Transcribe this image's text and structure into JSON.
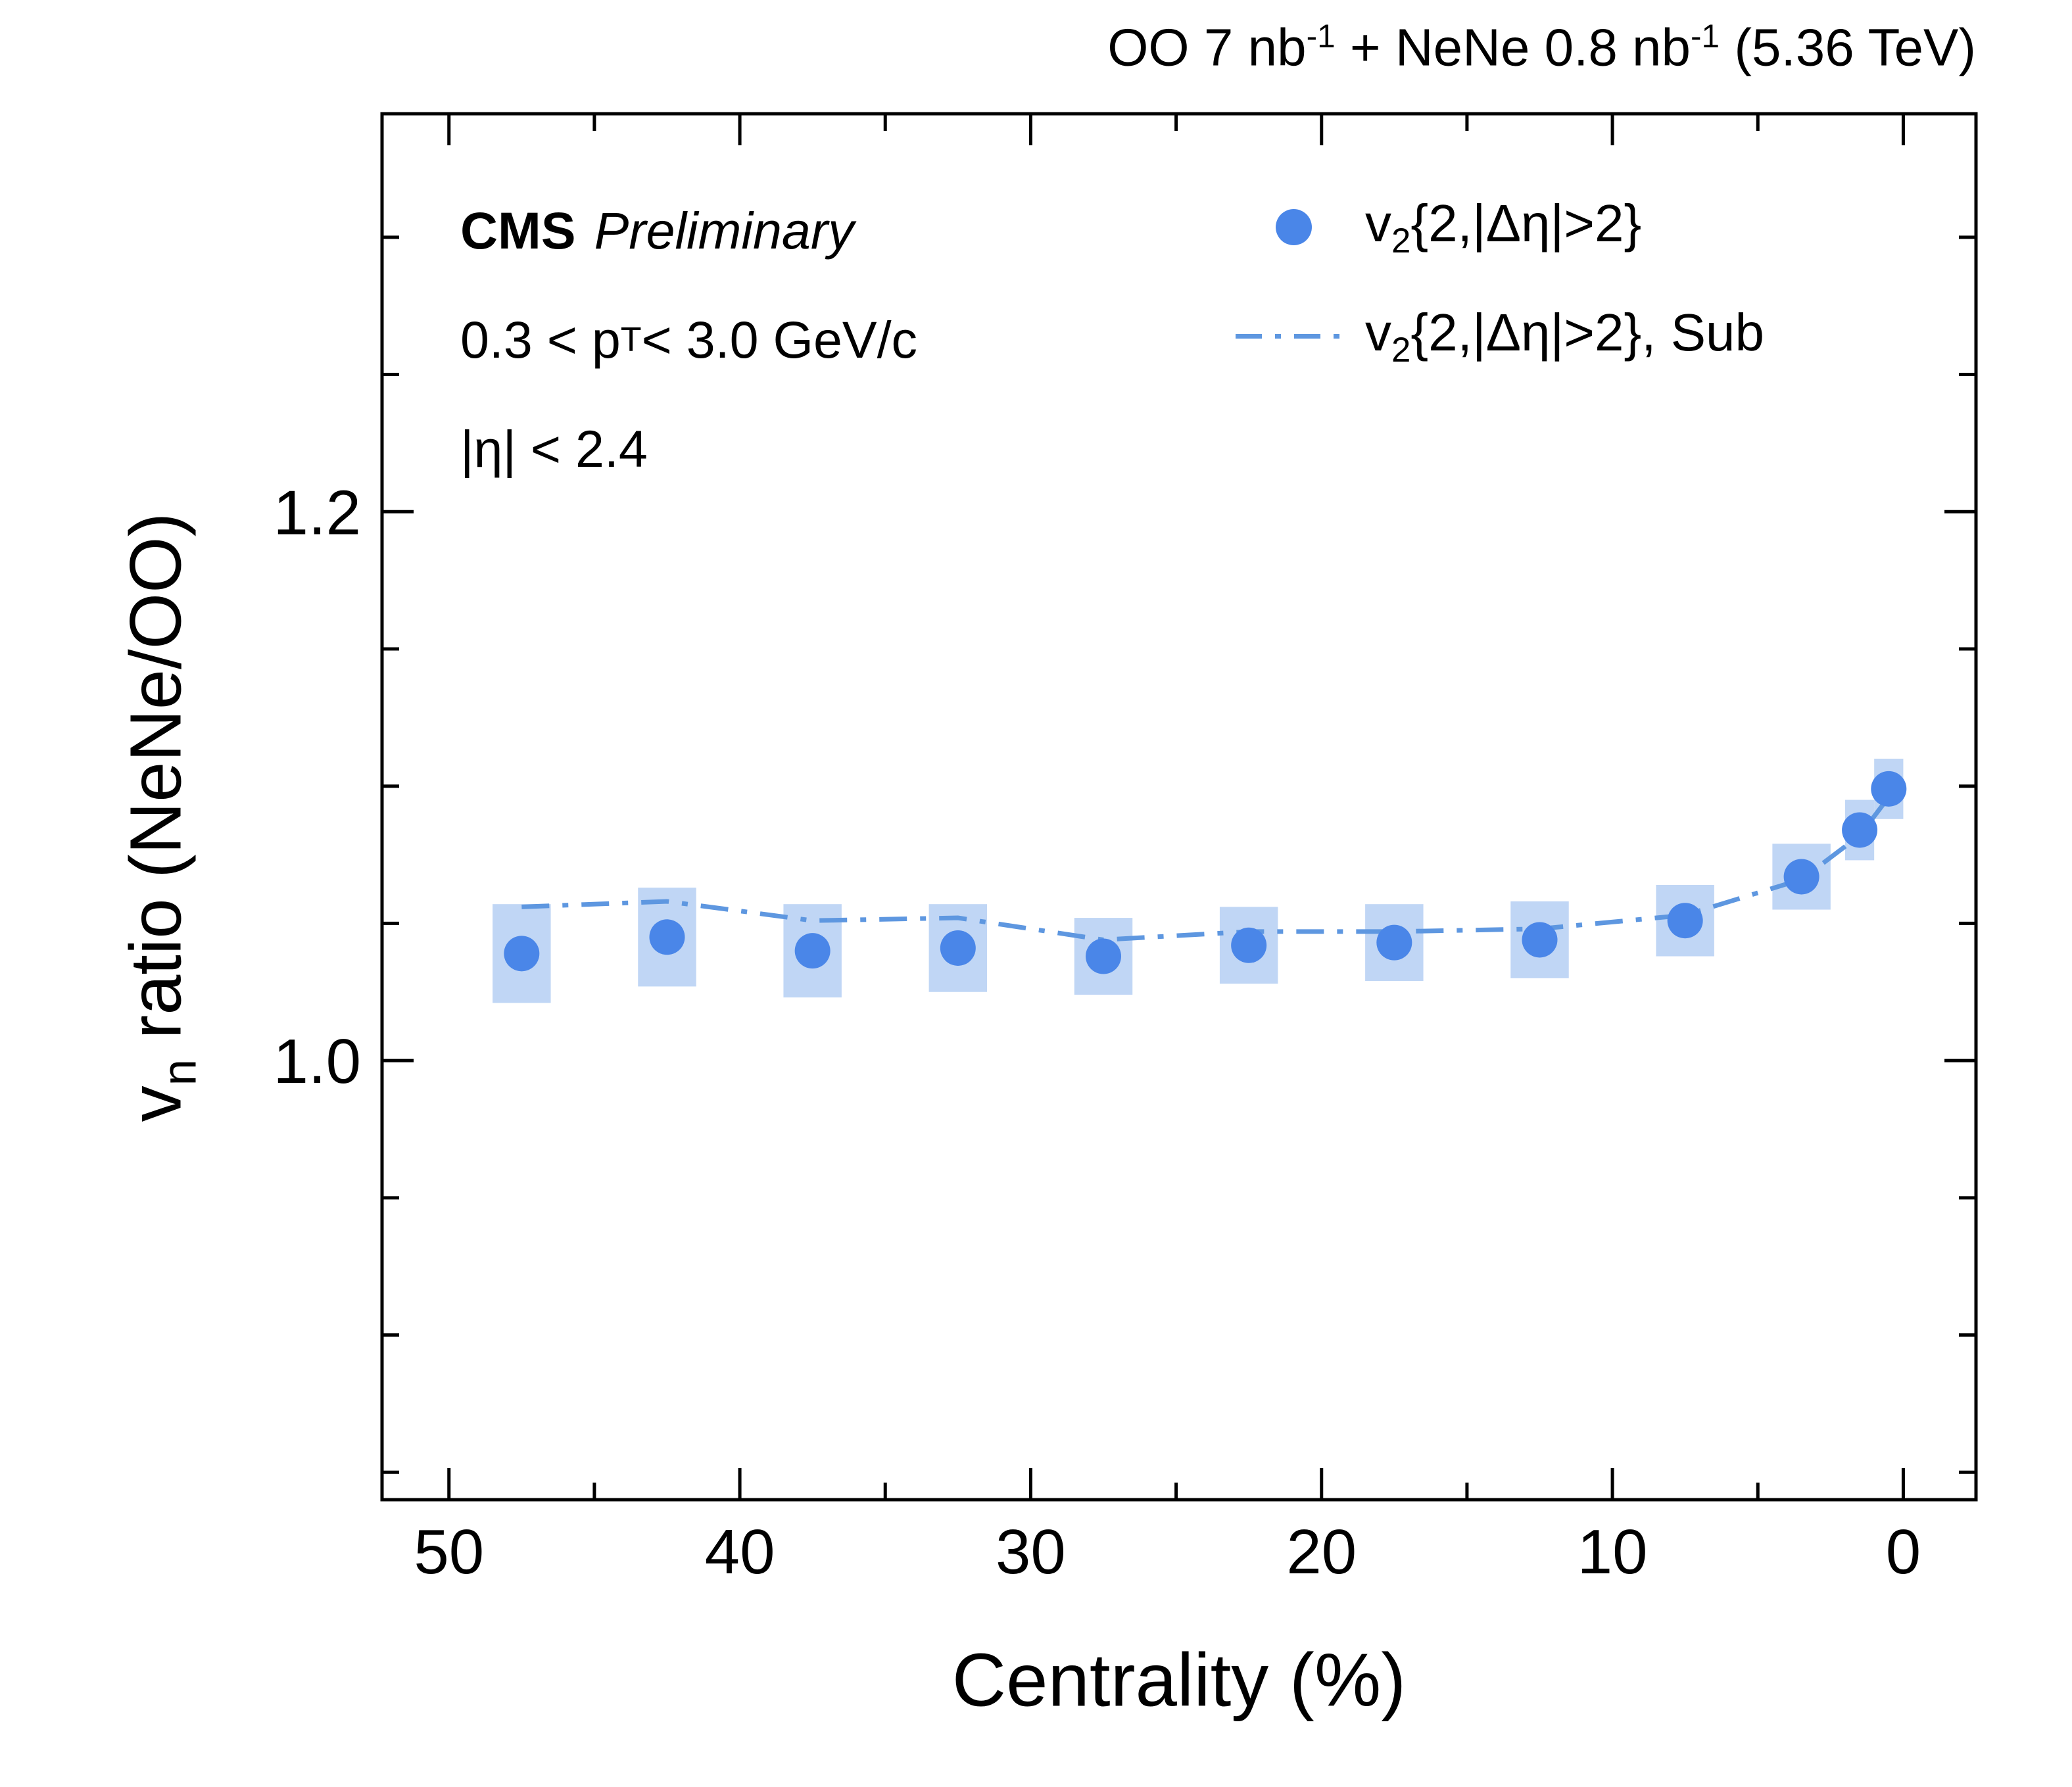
{
  "header": {
    "seg1": "OO 7 nb",
    "sup1": "-1",
    "seg2": " + NeNe 0.8 nb",
    "sup2": "-1",
    "seg3": " (5.36 TeV)"
  },
  "annotations": {
    "experiment": "CMS",
    "status": "Preliminary",
    "pt_seg1": "0.3 < p",
    "pt_sub": "T",
    "pt_seg2": " < 3.0 GeV/c",
    "eta": "|η| < 2.4"
  },
  "legend": {
    "entries": [
      {
        "seg1": "v",
        "sub": "2",
        "seg2": "{2,|Δη|>2}"
      },
      {
        "seg1": "v",
        "sub": "2",
        "seg2": "{2,|Δη|>2}, Sub"
      }
    ]
  },
  "axes": {
    "x_label": "Centrality (%)",
    "y_label_seg1": "v",
    "y_label_sub": "n",
    "y_label_seg2": " ratio (NeNe/OO)"
  },
  "chart_data": {
    "type": "scatter",
    "title": "OO 7 nb^-1 + NeNe 0.8 nb^-1 (5.36 TeV)",
    "xlabel": "Centrality (%)",
    "ylabel": "v_n ratio (NeNe/OO)",
    "x_axis_reversed": true,
    "xlim": [
      52.3,
      -2.5
    ],
    "ylim": [
      0.84,
      1.345
    ],
    "grid": false,
    "legend_position": "top-right-inside",
    "colors": {
      "marker": "#4a86e8",
      "box": "#b9d2f4",
      "line": "#5e97e0"
    },
    "x_ticks": {
      "values": [
        50,
        40,
        30,
        20,
        10,
        0
      ],
      "labels": [
        "50",
        "40",
        "30",
        "20",
        "10",
        "0"
      ],
      "minor": [
        45,
        35,
        25,
        15,
        5
      ]
    },
    "y_ticks": {
      "values": [
        1.0,
        1.2
      ],
      "labels": [
        "1.0",
        "1.2"
      ],
      "minor": [
        0.85,
        0.9,
        0.95,
        1.05,
        1.1,
        1.15,
        1.25,
        1.3
      ]
    },
    "series": [
      {
        "name": "v2{2,|Δη|>2}",
        "style": "markers-with-syst-boxes",
        "x": [
          47.5,
          42.5,
          37.5,
          32.5,
          27.5,
          22.5,
          17.5,
          12.5,
          7.5,
          3.5,
          1.5,
          0.5
        ],
        "y": [
          1.039,
          1.045,
          1.04,
          1.041,
          1.038,
          1.042,
          1.043,
          1.044,
          1.051,
          1.067,
          1.084,
          1.099
        ],
        "syst": [
          0.018,
          0.018,
          0.017,
          0.016,
          0.014,
          0.014,
          0.014,
          0.014,
          0.013,
          0.012,
          0.011,
          0.011
        ],
        "box_halfwidth": [
          1.0,
          1.0,
          1.0,
          1.0,
          1.0,
          1.0,
          1.0,
          1.0,
          1.0,
          1.0,
          0.5,
          0.5
        ]
      },
      {
        "name": "v2{2,|Δη|>2}, Sub",
        "style": "dashdot-line",
        "x": [
          47.5,
          42.5,
          37.5,
          32.5,
          27.5,
          22.5,
          17.5,
          12.5,
          7.5,
          3.5,
          1.5,
          0.5
        ],
        "y": [
          1.056,
          1.058,
          1.051,
          1.052,
          1.044,
          1.047,
          1.047,
          1.048,
          1.053,
          1.066,
          1.082,
          1.096
        ]
      }
    ]
  }
}
